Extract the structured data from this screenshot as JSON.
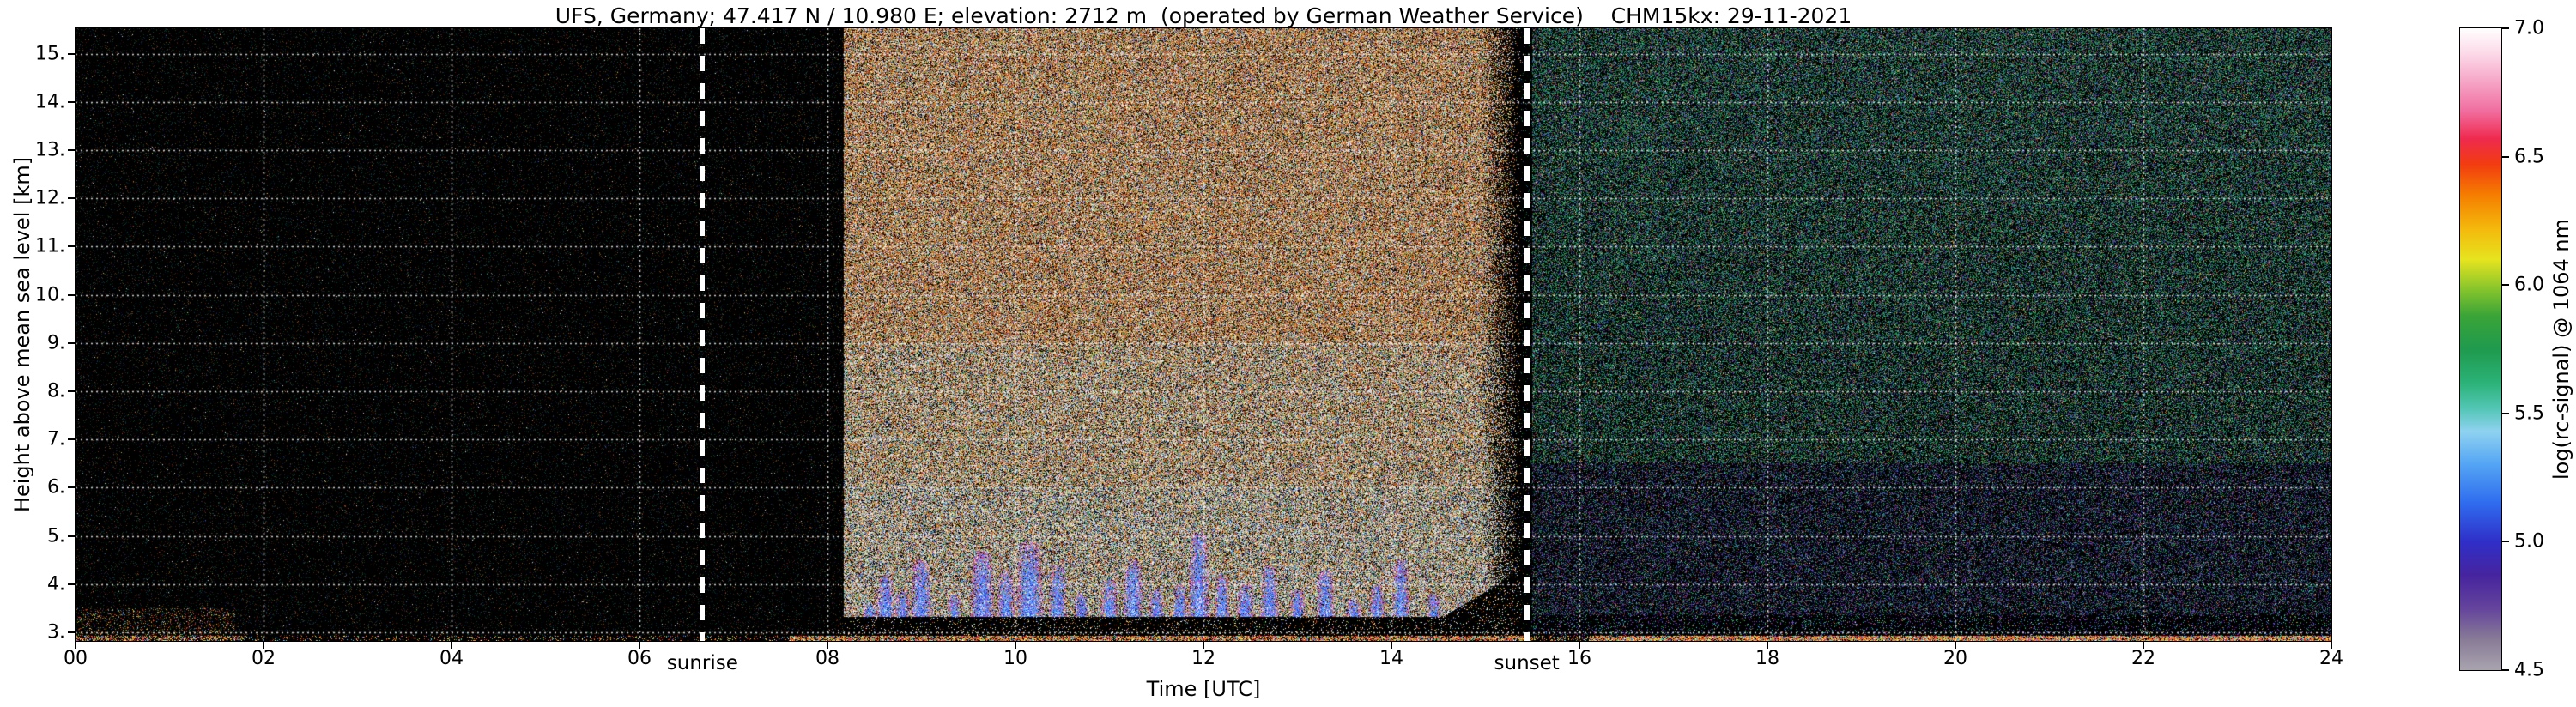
{
  "chart_data": {
    "type": "heatmap",
    "title": "UFS, Germany; 47.417 N / 10.980 E; elevation: 2712 m  (operated by German Weather Service)    CHM15kx: 29-11-2021",
    "xlabel": "Time [UTC]",
    "ylabel": "Height above mean sea level [km]",
    "xlim": [
      0,
      24
    ],
    "ylim": [
      2.82,
      15.53
    ],
    "grid": true,
    "background": "#000000",
    "x_ticks": [
      {
        "v": 0,
        "label": "00"
      },
      {
        "v": 2,
        "label": "02"
      },
      {
        "v": 4,
        "label": "04"
      },
      {
        "v": 6,
        "label": "06"
      },
      {
        "v": 8,
        "label": "08"
      },
      {
        "v": 10,
        "label": "10"
      },
      {
        "v": 12,
        "label": "12"
      },
      {
        "v": 14,
        "label": "14"
      },
      {
        "v": 16,
        "label": "16"
      },
      {
        "v": 18,
        "label": "18"
      },
      {
        "v": 20,
        "label": "20"
      },
      {
        "v": 22,
        "label": "22"
      },
      {
        "v": 24,
        "label": "24"
      }
    ],
    "y_ticks": [
      {
        "v": 15,
        "label": "15."
      },
      {
        "v": 14,
        "label": "14."
      },
      {
        "v": 13,
        "label": "13."
      },
      {
        "v": 12,
        "label": "12."
      },
      {
        "v": 11,
        "label": "11."
      },
      {
        "v": 10,
        "label": "10."
      },
      {
        "v": 9,
        "label": "9."
      },
      {
        "v": 8,
        "label": "8."
      },
      {
        "v": 7,
        "label": "7."
      },
      {
        "v": 6,
        "label": "6."
      },
      {
        "v": 5,
        "label": "5."
      },
      {
        "v": 4,
        "label": "4."
      },
      {
        "v": 3,
        "label": "3."
      }
    ],
    "colorbar": {
      "label": "log(rc-signal) @ 1064 nm",
      "range": [
        4.5,
        7.0
      ],
      "ticks": [
        {
          "v": 7.0,
          "label": "7.0"
        },
        {
          "v": 6.5,
          "label": "6.5"
        },
        {
          "v": 6.0,
          "label": "6.0"
        },
        {
          "v": 5.5,
          "label": "5.5"
        },
        {
          "v": 5.0,
          "label": "5.0"
        },
        {
          "v": 4.5,
          "label": "4.5"
        }
      ],
      "stops": [
        {
          "v": 4.5,
          "c": "#a9a3ae"
        },
        {
          "v": 4.62,
          "c": "#887b97"
        },
        {
          "v": 4.74,
          "c": "#64449c"
        },
        {
          "v": 4.87,
          "c": "#46249f"
        },
        {
          "v": 5.0,
          "c": "#2f2fc8"
        },
        {
          "v": 5.15,
          "c": "#2f6cee"
        },
        {
          "v": 5.3,
          "c": "#53a4f4"
        },
        {
          "v": 5.43,
          "c": "#8fd2f0"
        },
        {
          "v": 5.52,
          "c": "#52c6b4"
        },
        {
          "v": 5.62,
          "c": "#2bb277"
        },
        {
          "v": 5.75,
          "c": "#1f9a4e"
        },
        {
          "v": 5.88,
          "c": "#3aa437"
        },
        {
          "v": 5.98,
          "c": "#83c42c"
        },
        {
          "v": 6.1,
          "c": "#e6e41f"
        },
        {
          "v": 6.22,
          "c": "#f4b80c"
        },
        {
          "v": 6.35,
          "c": "#f57e00"
        },
        {
          "v": 6.47,
          "c": "#f23c10"
        },
        {
          "v": 6.57,
          "c": "#ef2a4e"
        },
        {
          "v": 6.68,
          "c": "#f06fa0"
        },
        {
          "v": 6.8,
          "c": "#f6a9c9"
        },
        {
          "v": 6.9,
          "c": "#fcd9e8"
        },
        {
          "v": 7.0,
          "c": "#ffffff"
        }
      ]
    },
    "annotations": [
      {
        "type": "vline",
        "label": "sunrise",
        "t": 6.67,
        "style": "white-dashed"
      },
      {
        "type": "vline",
        "label": "sunset",
        "t": 15.44,
        "style": "white-dashed"
      }
    ],
    "regions": {
      "night": {
        "t_range": [
          0,
          8.17
        ],
        "speckle_density": 0.11,
        "character": "near-black background before sun reaches instrument; sparse faint green/red/blue speckle"
      },
      "daylight": {
        "t_range": [
          8.17,
          15.38
        ],
        "fade_start": 14.95,
        "character": "intense broadband solar background noise: dense white/orange/brown/red speckle over full height, browner above ~9 km"
      },
      "dusk_gap": {
        "t_range": [
          15.38,
          15.5
        ],
        "character": "dark transition strip at the sunset line"
      },
      "evening": {
        "t_range": [
          15.5,
          24
        ],
        "speckle_density": 0.55,
        "purple_below_km": 6.5,
        "character": "moderate green/teal speckle noise after sunset; purple-blue tinge below ~6.5 km"
      },
      "attenuated_band": {
        "t_range": [
          8.17,
          15.38
        ],
        "h_range": [
          2.82,
          3.32
        ],
        "character": "dark band just above the surface layer during daytime, rising toward ~4.2 km before sunset"
      }
    },
    "clouds": {
      "character": "low-level cloud/aerosol backscatter plumes (blue/cyan cores with magenta fringe) between ~3 and ~5 km during daytime",
      "blobs": [
        {
          "t": 8.45,
          "top": 3.6,
          "w": 0.05
        },
        {
          "t": 8.62,
          "top": 4.2,
          "w": 0.06
        },
        {
          "t": 8.8,
          "top": 3.9,
          "w": 0.05
        },
        {
          "t": 9.0,
          "top": 4.5,
          "w": 0.07
        },
        {
          "t": 9.35,
          "top": 3.8,
          "w": 0.05
        },
        {
          "t": 9.65,
          "top": 4.7,
          "w": 0.08
        },
        {
          "t": 9.9,
          "top": 4.3,
          "w": 0.06
        },
        {
          "t": 10.15,
          "top": 4.9,
          "w": 0.09
        },
        {
          "t": 10.45,
          "top": 4.4,
          "w": 0.06
        },
        {
          "t": 10.7,
          "top": 3.8,
          "w": 0.05
        },
        {
          "t": 11.0,
          "top": 4.1,
          "w": 0.06
        },
        {
          "t": 11.25,
          "top": 4.5,
          "w": 0.07
        },
        {
          "t": 11.5,
          "top": 3.9,
          "w": 0.05
        },
        {
          "t": 11.75,
          "top": 4.0,
          "w": 0.05
        },
        {
          "t": 11.95,
          "top": 5.1,
          "w": 0.07
        },
        {
          "t": 12.2,
          "top": 4.2,
          "w": 0.05
        },
        {
          "t": 12.45,
          "top": 4.0,
          "w": 0.06
        },
        {
          "t": 12.7,
          "top": 4.4,
          "w": 0.06
        },
        {
          "t": 13.0,
          "top": 3.9,
          "w": 0.05
        },
        {
          "t": 13.3,
          "top": 4.3,
          "w": 0.06
        },
        {
          "t": 13.6,
          "top": 3.7,
          "w": 0.05
        },
        {
          "t": 13.85,
          "top": 4.0,
          "w": 0.05
        },
        {
          "t": 14.1,
          "top": 4.5,
          "w": 0.06
        },
        {
          "t": 14.45,
          "top": 3.8,
          "w": 0.05
        },
        {
          "t": 14.75,
          "top": 3.6,
          "w": 0.04
        }
      ]
    },
    "surface_layer": {
      "h_range": [
        2.82,
        2.93
      ],
      "character": "thin strong multicolored (red/orange/yellow/cyan) backscatter layer at the bottom of the profile, present all day, brightest after 08 UTC"
    }
  }
}
